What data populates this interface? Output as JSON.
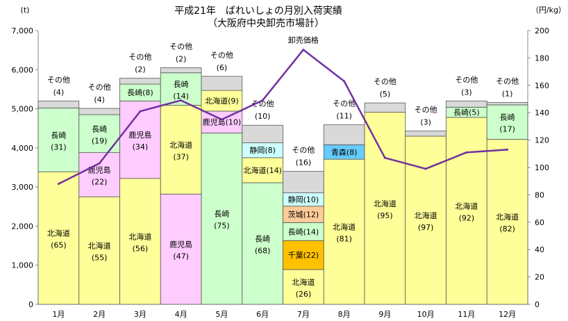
{
  "chart_data": {
    "type": "bar",
    "subtype": "stacked-bar-with-line",
    "title": "平成21年　ばれいしょの月別入荷実績",
    "subtitle": "（大阪府中央卸売市場計）",
    "ylabel_left": "(t)",
    "ylabel_right": "（円/kg）",
    "y_left_range": [
      0,
      7000
    ],
    "y_left_ticks": [
      "0",
      "1,000",
      "2,000",
      "3,000",
      "4,000",
      "5,000",
      "6,000",
      "7,000"
    ],
    "y_right_range": [
      0,
      200
    ],
    "y_right_ticks": [
      "0",
      "20",
      "40",
      "60",
      "80",
      "100",
      "120",
      "140",
      "160",
      "180",
      "200"
    ],
    "grid": false,
    "categories": [
      "1月",
      "2月",
      "3月",
      "4月",
      "5月",
      "6月",
      "7月",
      "8月",
      "9月",
      "10月",
      "11月",
      "12月"
    ],
    "series": [
      {
        "name": "北海道",
        "color": "#ffff99"
      },
      {
        "name": "鹿児島",
        "color": "#ffccff"
      },
      {
        "name": "長崎",
        "color": "#ccffcc"
      },
      {
        "name": "静岡",
        "color": "#ccffff"
      },
      {
        "name": "茨城",
        "color": "#ffcc99"
      },
      {
        "name": "千葉",
        "color": "#ffc000"
      },
      {
        "name": "青森",
        "color": "#66ccff"
      },
      {
        "name": "その他",
        "color": "#d9d9d9"
      }
    ],
    "bars": [
      {
        "month": "1月",
        "segments": [
          {
            "name": "北海道",
            "value": 3390,
            "label": "北海道",
            "pct": "(65)"
          },
          {
            "name": "長崎",
            "value": 1630,
            "label": "長崎",
            "pct": "(31)"
          },
          {
            "name": "その他",
            "value": 180,
            "label": "その他",
            "pct": "(4)"
          }
        ]
      },
      {
        "month": "2月",
        "segments": [
          {
            "name": "北海道",
            "value": 2750,
            "label": "北海道",
            "pct": "(55)"
          },
          {
            "name": "鹿児島",
            "value": 1130,
            "label": "鹿児島",
            "pct": "(22)"
          },
          {
            "name": "長崎",
            "value": 970,
            "label": "長崎",
            "pct": "(19)"
          },
          {
            "name": "その他",
            "value": 160,
            "label": "その他",
            "pct": "(4)"
          }
        ]
      },
      {
        "month": "3月",
        "segments": [
          {
            "name": "北海道",
            "value": 3220,
            "label": "北海道",
            "pct": "(56)"
          },
          {
            "name": "鹿児島",
            "value": 1980,
            "label": "鹿児島",
            "pct": "(34)"
          },
          {
            "name": "長崎",
            "value": 430,
            "label": "長崎(8)",
            "pct": ""
          },
          {
            "name": "その他",
            "value": 150,
            "label": "その他",
            "pct": "(2)"
          }
        ]
      },
      {
        "month": "4月",
        "segments": [
          {
            "name": "鹿児島",
            "value": 2820,
            "label": "鹿児島",
            "pct": "(47)"
          },
          {
            "name": "北海道",
            "value": 2270,
            "label": "北海道",
            "pct": "(37)"
          },
          {
            "name": "長崎",
            "value": 830,
            "label": "長崎",
            "pct": "(14)"
          },
          {
            "name": "その他",
            "value": 130,
            "label": "その他",
            "pct": "(2)"
          }
        ]
      },
      {
        "month": "5月",
        "segments": [
          {
            "name": "長崎",
            "value": 4380,
            "label": "長崎",
            "pct": "(75)"
          },
          {
            "name": "鹿児島",
            "value": 560,
            "label": "鹿児島(10)",
            "pct": ""
          },
          {
            "name": "北海道",
            "value": 530,
            "label": "北海道(9)",
            "pct": ""
          },
          {
            "name": "その他",
            "value": 360,
            "label": "その他",
            "pct": "(6)"
          }
        ]
      },
      {
        "month": "6月",
        "segments": [
          {
            "name": "長崎",
            "value": 3110,
            "label": "長崎",
            "pct": "(68)"
          },
          {
            "name": "北海道",
            "value": 640,
            "label": "北海道(14)",
            "pct": ""
          },
          {
            "name": "静岡",
            "value": 380,
            "label": "静岡(8)",
            "pct": ""
          },
          {
            "name": "その他",
            "value": 450,
            "label": "その他",
            "pct": "(10)"
          }
        ]
      },
      {
        "month": "7月",
        "segments": [
          {
            "name": "北海道",
            "value": 890,
            "label": "北海道",
            "pct": "(26)"
          },
          {
            "name": "千葉",
            "value": 740,
            "label": "千葉(22)",
            "pct": ""
          },
          {
            "name": "長崎",
            "value": 460,
            "label": "長崎(14)",
            "pct": ""
          },
          {
            "name": "茨城",
            "value": 420,
            "label": "茨城(12)",
            "pct": ""
          },
          {
            "name": "静岡",
            "value": 340,
            "label": "静岡(10)",
            "pct": ""
          },
          {
            "name": "その他",
            "value": 550,
            "label": "その他",
            "pct": "(16)"
          }
        ]
      },
      {
        "month": "8月",
        "segments": [
          {
            "name": "北海道",
            "value": 3710,
            "label": "北海道",
            "pct": "(81)"
          },
          {
            "name": "青森",
            "value": 370,
            "label": "青森(8)",
            "pct": ""
          },
          {
            "name": "その他",
            "value": 510,
            "label": "その他",
            "pct": "(11)"
          }
        ]
      },
      {
        "month": "9月",
        "segments": [
          {
            "name": "北海道",
            "value": 4910,
            "label": "北海道",
            "pct": "(95)"
          },
          {
            "name": "その他",
            "value": 240,
            "label": "その他",
            "pct": "(5)"
          }
        ]
      },
      {
        "month": "10月",
        "segments": [
          {
            "name": "北海道",
            "value": 4300,
            "label": "北海道",
            "pct": "(97)"
          },
          {
            "name": "その他",
            "value": 130,
            "label": "その他",
            "pct": "(3)"
          }
        ]
      },
      {
        "month": "11月",
        "segments": [
          {
            "name": "北海道",
            "value": 4780,
            "label": "北海道",
            "pct": "(92)"
          },
          {
            "name": "長崎",
            "value": 260,
            "label": "長崎(5)",
            "pct": ""
          },
          {
            "name": "その他",
            "value": 160,
            "label": "その他",
            "pct": "(3)"
          }
        ]
      },
      {
        "month": "12月",
        "segments": [
          {
            "name": "北海道",
            "value": 4220,
            "label": "北海道",
            "pct": "(82)"
          },
          {
            "name": "長崎",
            "value": 880,
            "label": "長崎",
            "pct": "(17)"
          },
          {
            "name": "その他",
            "value": 60,
            "label": "その他",
            "pct": "(1)"
          }
        ]
      }
    ],
    "line": {
      "name": "卸売価格",
      "axis": "right",
      "color": "#7030a0",
      "values": [
        88,
        103,
        141,
        149,
        135,
        149,
        186,
        163,
        107,
        99,
        111,
        113
      ]
    }
  }
}
